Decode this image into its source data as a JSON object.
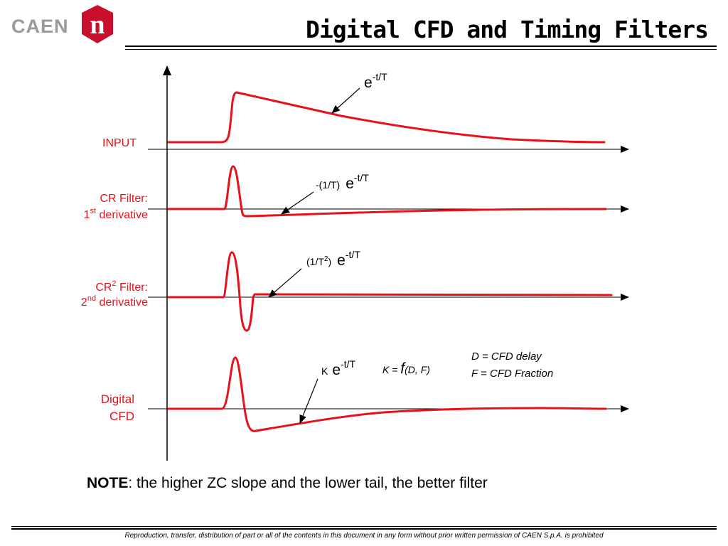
{
  "logo": {
    "text": "CAEN",
    "badge_letter": "n",
    "badge_color": "#c8102e"
  },
  "title": "Digital CFD and Timing Filters",
  "signal_color": "#e8111b",
  "rows": [
    {
      "label_lines": [
        "INPUT"
      ]
    },
    {
      "label_lines": [
        "CR Filter:",
        "1",
        "st",
        " derivative"
      ]
    },
    {
      "label_lines": [
        "CR",
        "2",
        " Filter:",
        "2",
        "nd",
        " derivative"
      ]
    },
    {
      "label_lines": [
        "Digital",
        "CFD"
      ]
    }
  ],
  "equations": {
    "input": {
      "base": "e",
      "exp": "-t/T"
    },
    "cr1": {
      "coef": "-(1/T)",
      "base": "e",
      "exp": "-t/T"
    },
    "cr2": {
      "coef_pre": "(1/T",
      "coef_sup": "2",
      "coef_post": ")",
      "base": "e",
      "exp": "-t/T"
    },
    "cfd": {
      "coef": "K",
      "base": "e",
      "exp": "-t/T"
    },
    "k_def": {
      "lhs": "K = ",
      "f": "f",
      "args": "(D, F)"
    },
    "d_def": "D = CFD delay",
    "f_def": "F = CFD Fraction"
  },
  "note": {
    "bold": "NOTE",
    "text": ": the higher ZC slope and the lower tail, the better filter"
  },
  "footer": "Reproduction, transfer, distribution of part or all of the contents in this document in any form without prior written permission of  CAEN S.p.A. is prohibited"
}
